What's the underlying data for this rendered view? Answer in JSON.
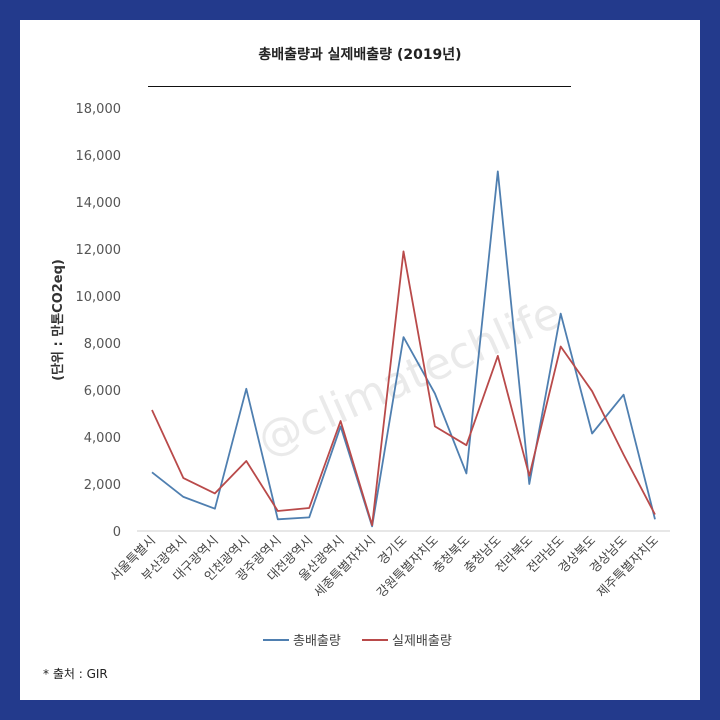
{
  "page": {
    "background": "#233a8c",
    "card_background": "#ffffff"
  },
  "chart_data": {
    "type": "line",
    "title": "총배출량과 실제배출량 (2019년)",
    "ylabel": "(단위 : 만톤CO2eq)",
    "ylim": [
      0,
      18000
    ],
    "yticks": [
      0,
      2000,
      4000,
      6000,
      8000,
      10000,
      12000,
      14000,
      16000,
      18000
    ],
    "ytick_labels": [
      "0",
      "2,000",
      "4,000",
      "6,000",
      "8,000",
      "10,000",
      "12,000",
      "14,000",
      "16,000",
      "18,000"
    ],
    "categories": [
      "서울특별시",
      "부산광역시",
      "대구광역시",
      "인천광역시",
      "광주광역시",
      "대전광역시",
      "울산광역시",
      "세종특별자치시",
      "경기도",
      "강원특별자치도",
      "충청북도",
      "충청남도",
      "전라북도",
      "전라남도",
      "경상북도",
      "경상남도",
      "제주특별자치도"
    ],
    "series": [
      {
        "name": "총배출량",
        "color": "#4f7fb0",
        "values": [
          2500,
          1450,
          950,
          6050,
          500,
          580,
          4450,
          200,
          8250,
          5850,
          2450,
          15300,
          2000,
          9250,
          4150,
          5800,
          500
        ]
      },
      {
        "name": "실제배출량",
        "color": "#b94a4a",
        "values": [
          5150,
          2250,
          1600,
          2980,
          850,
          980,
          4680,
          250,
          11900,
          4450,
          3650,
          7450,
          2350,
          7850,
          5950,
          3250,
          700
        ]
      }
    ],
    "legend_position": "bottom",
    "grid": false
  },
  "watermark": "@climatechlife",
  "source_note": "* 출처 : GIR"
}
